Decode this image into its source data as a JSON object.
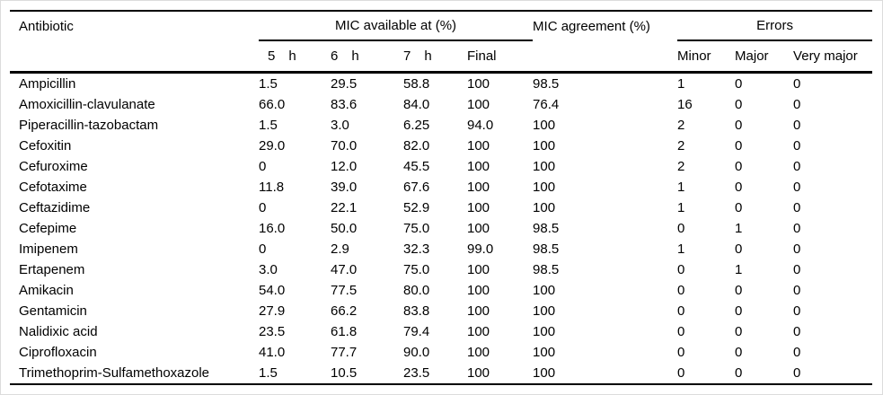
{
  "table": {
    "headers": {
      "antibiotic": "Antibiotic",
      "mic_available": "MIC available at (%)",
      "mic_agreement": "MIC agreement (%)",
      "errors": "Errors"
    },
    "subheaders": [
      "5 h",
      "6 h",
      "7 h",
      "Final",
      "Minor",
      "Major",
      "Very major"
    ],
    "rows": [
      [
        "Ampicillin",
        "1.5",
        "29.5",
        "58.8",
        "100",
        "98.5",
        "1",
        "0",
        "0"
      ],
      [
        "Amoxicillin-clavulanate",
        "66.0",
        "83.6",
        "84.0",
        "100",
        "76.4",
        "16",
        "0",
        "0"
      ],
      [
        "Piperacillin-tazobactam",
        "1.5",
        "3.0",
        "6.25",
        "94.0",
        "100",
        "2",
        "0",
        "0"
      ],
      [
        "Cefoxitin",
        "29.0",
        "70.0",
        "82.0",
        "100",
        "100",
        "2",
        "0",
        "0"
      ],
      [
        "Cefuroxime",
        "0",
        "12.0",
        "45.5",
        "100",
        "100",
        "2",
        "0",
        "0"
      ],
      [
        "Cefotaxime",
        "11.8",
        "39.0",
        "67.6",
        "100",
        "100",
        "1",
        "0",
        "0"
      ],
      [
        "Ceftazidime",
        "0",
        "22.1",
        "52.9",
        "100",
        "100",
        "1",
        "0",
        "0"
      ],
      [
        "Cefepime",
        "16.0",
        "50.0",
        "75.0",
        "100",
        "98.5",
        "0",
        "1",
        "0"
      ],
      [
        "Imipenem",
        "0",
        "2.9",
        "32.3",
        "99.0",
        "98.5",
        "1",
        "0",
        "0"
      ],
      [
        "Ertapenem",
        "3.0",
        "47.0",
        "75.0",
        "100",
        "98.5",
        "0",
        "1",
        "0"
      ],
      [
        "Amikacin",
        "54.0",
        "77.5",
        "80.0",
        "100",
        "100",
        "0",
        "0",
        "0"
      ],
      [
        "Gentamicin",
        "27.9",
        "66.2",
        "83.8",
        "100",
        "100",
        "0",
        "0",
        "0"
      ],
      [
        "Nalidixic acid",
        "23.5",
        "61.8",
        "79.4",
        "100",
        "100",
        "0",
        "0",
        "0"
      ],
      [
        "Ciprofloxacin",
        "41.0",
        "77.7",
        "90.0",
        "100",
        "100",
        "0",
        "0",
        "0"
      ],
      [
        "Trimethoprim-Sulfamethoxazole",
        "1.5",
        "10.5",
        "23.5",
        "100",
        "100",
        "0",
        "0",
        "0"
      ]
    ],
    "colors": {
      "text": "#000000",
      "rule": "#000000",
      "background": "#ffffff",
      "frame": "#dcdcdc"
    }
  }
}
